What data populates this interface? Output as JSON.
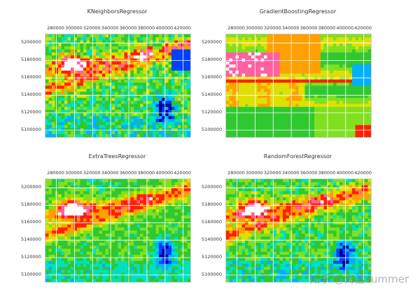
{
  "chart_data": [
    {
      "type": "heatmap",
      "title": "KNeighborsRegressor",
      "x_ticks": [
        "280000",
        "300000",
        "320000",
        "340000",
        "360000",
        "380000",
        "400000",
        "420000"
      ],
      "y_ticks": [
        "5200000",
        "5180000",
        "5160000",
        "5140000",
        "5120000",
        "5100000"
      ],
      "xlim": [
        268000,
        428000
      ],
      "ylim": [
        5092000,
        5210000
      ],
      "grid": true,
      "pattern": "knn"
    },
    {
      "type": "heatmap",
      "title": "GradientBoostingRegressor",
      "x_ticks": [
        "280000",
        "300000",
        "320000",
        "340000",
        "360000",
        "380000",
        "400000",
        "420000"
      ],
      "y_ticks": [
        "5200000",
        "5180000",
        "5160000",
        "5140000",
        "5120000",
        "5100000"
      ],
      "xlim": [
        268000,
        428000
      ],
      "ylim": [
        5092000,
        5210000
      ],
      "grid": true,
      "pattern": "gb"
    },
    {
      "type": "heatmap",
      "title": "ExtraTreesRegressor",
      "x_ticks": [
        "280000",
        "300000",
        "320000",
        "340000",
        "360000",
        "380000",
        "400000",
        "420000"
      ],
      "y_ticks": [
        "5200000",
        "5180000",
        "5160000",
        "5140000",
        "5120000",
        "5100000"
      ],
      "xlim": [
        268000,
        428000
      ],
      "ylim": [
        5092000,
        5210000
      ],
      "grid": true,
      "pattern": "et"
    },
    {
      "type": "heatmap",
      "title": "RandomForestRegressor",
      "x_ticks": [
        "280000",
        "300000",
        "320000",
        "340000",
        "360000",
        "380000",
        "400000",
        "420000"
      ],
      "y_ticks": [
        "5200000",
        "5180000",
        "5160000",
        "5140000",
        "5120000",
        "5100000"
      ],
      "xlim": [
        268000,
        428000
      ],
      "ylim": [
        5092000,
        5210000
      ],
      "grid": true,
      "pattern": "rf"
    }
  ],
  "colormap": [
    "#0000a0",
    "#0040ff",
    "#00b0ff",
    "#00e0c0",
    "#30c830",
    "#80e020",
    "#e0e000",
    "#ffa000",
    "#ff2000",
    "#ff60a0",
    "#ffffff"
  ],
  "watermark": "知乎 @海盐summer"
}
